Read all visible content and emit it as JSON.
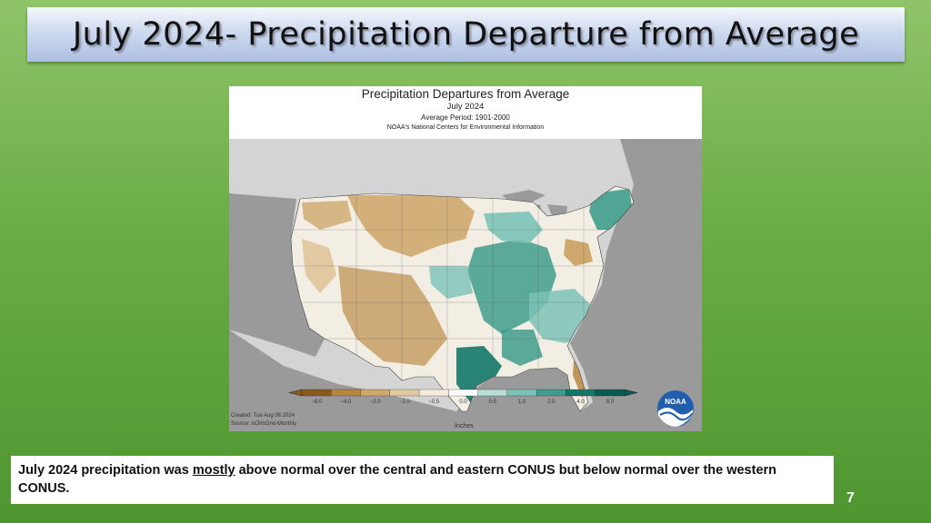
{
  "slide": {
    "title": "July 2024- Precipitation Departure from Average",
    "number": "7",
    "caption": {
      "part1": "July 2024  precipitation was ",
      "emphasis": "mostly",
      "part2": " above normal over the central and eastern CONUS but below normal over the western  CONUS."
    }
  },
  "figure": {
    "title": "Precipitation Departures from Average",
    "subtitle": "July 2024",
    "period": "Average Period: 1901-2000",
    "source_org": "NOAA's National Centers for Environmental Information",
    "created": "Created: Tue Aug 06 2024",
    "source": "Source: nClimGrid-Monthly",
    "units": "Inches",
    "logo_text": "NOAA",
    "legend": {
      "ticks": [
        "−8.0",
        "−4.0",
        "−2.0",
        "−1.0",
        "−0.5",
        "0.0",
        "0.5",
        "1.0",
        "2.0",
        "4.0",
        "8.0"
      ],
      "colors": [
        "#8a5a1c",
        "#b98640",
        "#cfa86e",
        "#e2c9a1",
        "#f5ecdd",
        "#ffffff",
        "#b9ddd7",
        "#7cc2b6",
        "#3e9c8c",
        "#147868",
        "#0b5a4e"
      ]
    },
    "colors": {
      "ocean": "#9a9a9a",
      "land_outside": "#d4d4d4",
      "dry": "#c9a36c",
      "wet": "#3e9c8c"
    }
  }
}
